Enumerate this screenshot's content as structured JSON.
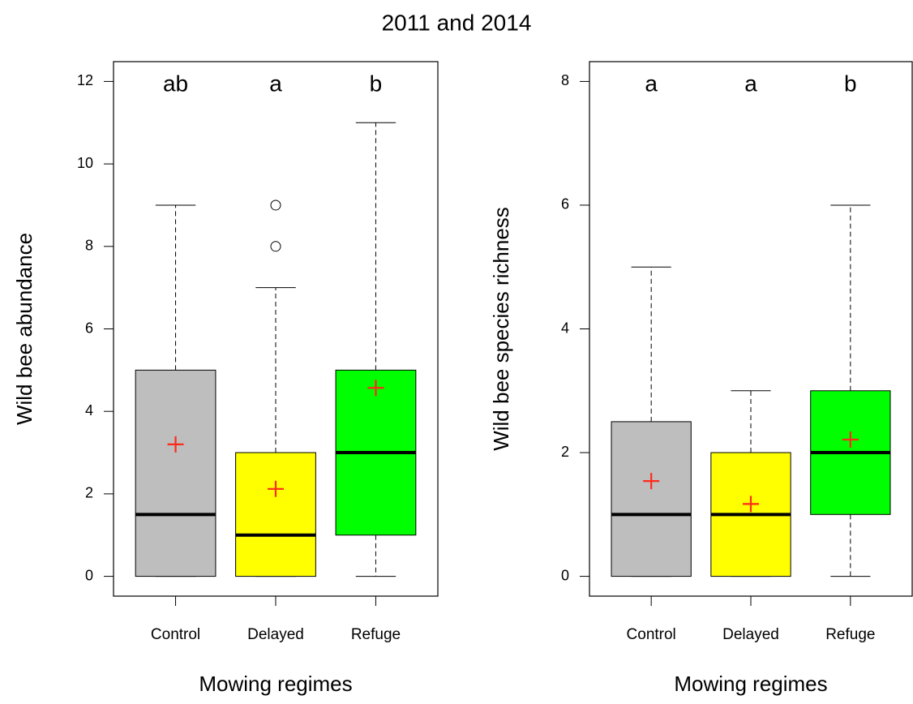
{
  "title": "2011 and 2014",
  "chart_data": [
    {
      "type": "box",
      "y_label": "Wild bee abundance",
      "x_label": "Mowing regimes",
      "categories": [
        "Control",
        "Delayed",
        "Refuge"
      ],
      "ylim": [
        -0.48,
        12.48
      ],
      "yticks": [
        0,
        2,
        4,
        6,
        8,
        10,
        12
      ],
      "mean_color": "#ff2a1a",
      "boxes": [
        {
          "min": 0,
          "q1": 0,
          "median": 1.5,
          "q3": 5,
          "max": 9,
          "outliers": [],
          "mean": 3.2,
          "color": "#bebebe",
          "letter": "ab"
        },
        {
          "min": 0,
          "q1": 0,
          "median": 1,
          "q3": 3,
          "max": 7,
          "outliers": [
            8,
            9
          ],
          "mean": 2.12,
          "color": "#ffff00",
          "letter": "a"
        },
        {
          "min": 0,
          "q1": 1,
          "median": 3,
          "q3": 5,
          "max": 11,
          "outliers": [],
          "mean": 4.57,
          "color": "#00ff00",
          "letter": "b"
        }
      ]
    },
    {
      "type": "box",
      "y_label": "Wild bee species richness",
      "x_label": "Mowing regimes",
      "categories": [
        "Control",
        "Delayed",
        "Refuge"
      ],
      "ylim": [
        -0.32,
        8.32
      ],
      "yticks": [
        0,
        2,
        4,
        6,
        8
      ],
      "mean_color": "#ff2a1a",
      "boxes": [
        {
          "min": 0,
          "q1": 0,
          "median": 1,
          "q3": 2.5,
          "max": 5,
          "outliers": [],
          "mean": 1.54,
          "color": "#bebebe",
          "letter": "a"
        },
        {
          "min": 0,
          "q1": 0,
          "median": 1,
          "q3": 2,
          "max": 3,
          "outliers": [],
          "mean": 1.17,
          "color": "#ffff00",
          "letter": "a"
        },
        {
          "min": 0,
          "q1": 1,
          "median": 2,
          "q3": 3,
          "max": 6,
          "outliers": [],
          "mean": 2.21,
          "color": "#00ff00",
          "letter": "b"
        }
      ]
    }
  ]
}
